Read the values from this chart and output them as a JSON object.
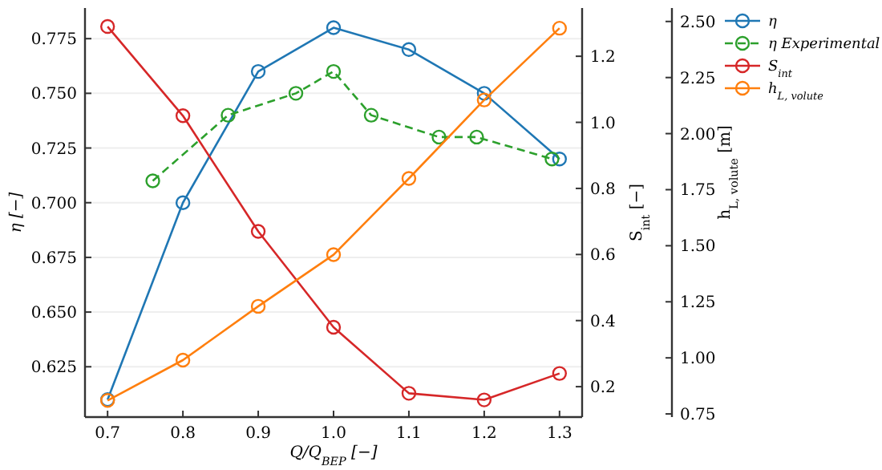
{
  "chart_data": {
    "type": "line",
    "xlabel": "Q/Q$_{BEP}$ [−]",
    "ylabel": "η [−]",
    "y2label": "S$_{int}$ [−]",
    "y3label": "h$_{L, volute}$ [m]",
    "xlim": [
      0.67,
      1.33
    ],
    "xticks": [
      0.7,
      0.8,
      0.9,
      {
        "value": 1.0,
        "label": "1.0"
      },
      1.1,
      1.2,
      1.3
    ],
    "ylim": [
      0.602,
      0.789
    ],
    "yticks": [
      0.625,
      {
        "value": 0.65,
        "label": "0.650"
      },
      0.675,
      {
        "value": 0.7,
        "label": "0.700"
      },
      0.725,
      {
        "value": 0.75,
        "label": "0.750"
      },
      0.775
    ],
    "y2lim": [
      0.108,
      1.346
    ],
    "y2ticks": [
      0.2,
      0.4,
      0.6,
      0.8,
      {
        "value": 1.0,
        "label": "1.0"
      },
      1.2
    ],
    "y3lim": [
      0.736,
      2.56
    ],
    "y3ticks": [
      {
        "value": 0.75,
        "label": "0.75"
      },
      {
        "value": 1.0,
        "label": "1.00"
      },
      {
        "value": 1.25,
        "label": "1.25"
      },
      {
        "value": 1.5,
        "label": "1.50"
      },
      {
        "value": 1.75,
        "label": "1.75"
      },
      {
        "value": 2.0,
        "label": "2.00"
      },
      {
        "value": 2.25,
        "label": "2.25"
      },
      {
        "value": 2.5,
        "label": "2.50"
      }
    ],
    "grid": "y",
    "legend": "right",
    "marker": "circle",
    "series": [
      {
        "name": "η",
        "color": "#1f77b4",
        "x": [
          0.7,
          0.8,
          0.9,
          1.0,
          1.1,
          1.2,
          1.3
        ],
        "values": [
          0.61,
          0.7,
          0.76,
          0.78,
          0.77,
          0.75,
          0.72
        ]
      },
      {
        "name": "η Experimental",
        "color": "#2ca02c",
        "line_style": "dashed",
        "x": [
          0.76,
          0.86,
          0.95,
          1.0,
          1.05,
          1.14,
          1.19,
          1.29
        ],
        "values": [
          0.71,
          0.74,
          0.75,
          0.76,
          0.74,
          0.73,
          0.73,
          0.72
        ]
      },
      {
        "name": "S$_{int}$",
        "color": "#d62728",
        "axis": "y2",
        "x": [
          0.7,
          0.8,
          0.9,
          1.0,
          1.1,
          1.2,
          1.3
        ],
        "values": [
          1.29,
          1.02,
          0.67,
          0.38,
          0.18,
          0.16,
          0.24
        ]
      },
      {
        "name": "h$_{L, volute}$",
        "color": "#ff7f0e",
        "axis": "y3",
        "x": [
          0.7,
          0.8,
          0.9,
          1.0,
          1.1,
          1.2,
          1.3
        ],
        "values": [
          0.81,
          0.99,
          1.23,
          1.46,
          1.8,
          2.15,
          2.47
        ]
      }
    ]
  }
}
